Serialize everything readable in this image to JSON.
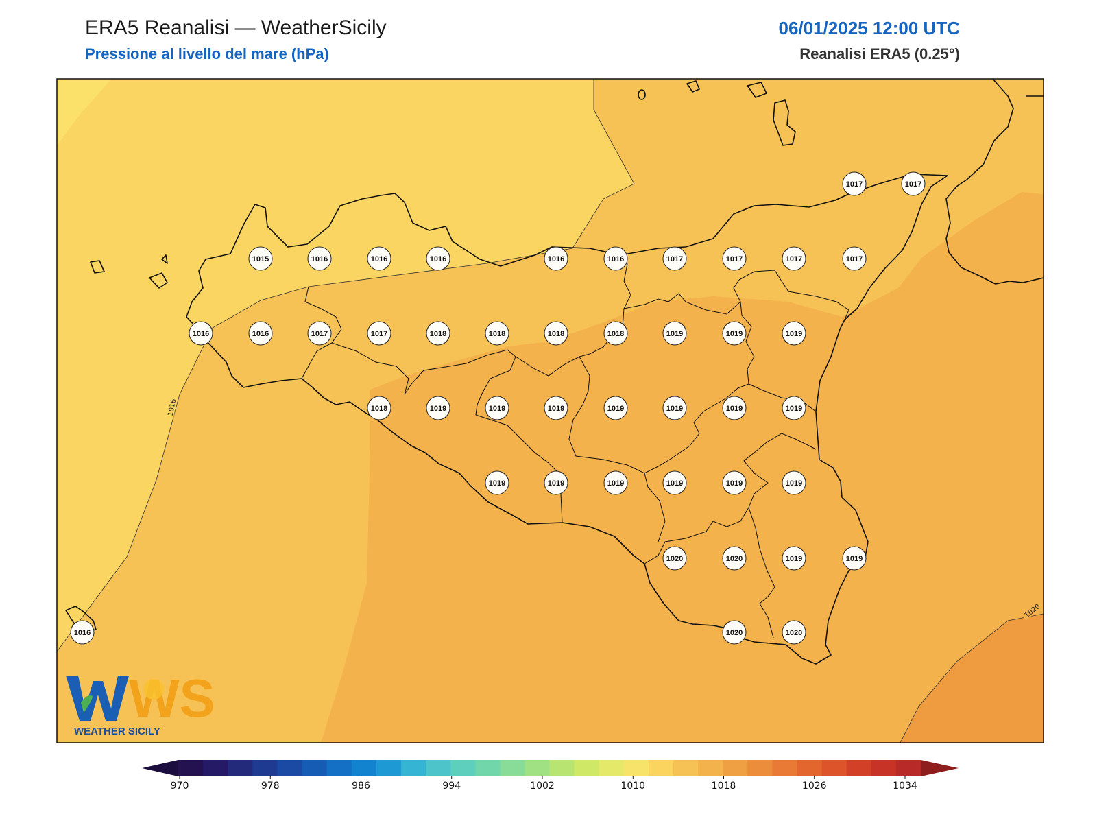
{
  "header": {
    "title": "ERA5 Reanalisi — WeatherSicily",
    "subtitle": "Pressione al livello del mare (hPa)",
    "datetime": "06/01/2025 12:00 UTC",
    "source": "Reanalisi ERA5 (0.25°)"
  },
  "map": {
    "variable": "mean sea level pressure",
    "unit": "hPa",
    "contour_labels": [
      "1016",
      "1020"
    ],
    "field_colors": {
      "1015": "#fbe169",
      "1016": "#fad561",
      "1017": "#f7c255",
      "1018": "#f4b24c",
      "1020": "#ef9c41"
    },
    "stations": [
      {
        "value": "1017"
      },
      {
        "value": "1017"
      },
      {
        "value": "1015"
      },
      {
        "value": "1016"
      },
      {
        "value": "1016"
      },
      {
        "value": "1016"
      },
      {
        "value": "1016"
      },
      {
        "value": "1016"
      },
      {
        "value": "1017"
      },
      {
        "value": "1017"
      },
      {
        "value": "1017"
      },
      {
        "value": "1017"
      },
      {
        "value": "1016"
      },
      {
        "value": "1016"
      },
      {
        "value": "1017"
      },
      {
        "value": "1017"
      },
      {
        "value": "1018"
      },
      {
        "value": "1018"
      },
      {
        "value": "1018"
      },
      {
        "value": "1018"
      },
      {
        "value": "1019"
      },
      {
        "value": "1019"
      },
      {
        "value": "1019"
      },
      {
        "value": "1018"
      },
      {
        "value": "1019"
      },
      {
        "value": "1019"
      },
      {
        "value": "1019"
      },
      {
        "value": "1019"
      },
      {
        "value": "1019"
      },
      {
        "value": "1019"
      },
      {
        "value": "1019"
      },
      {
        "value": "1019"
      },
      {
        "value": "1019"
      },
      {
        "value": "1019"
      },
      {
        "value": "1019"
      },
      {
        "value": "1019"
      },
      {
        "value": "1019"
      },
      {
        "value": "1020"
      },
      {
        "value": "1020"
      },
      {
        "value": "1019"
      },
      {
        "value": "1019"
      },
      {
        "value": "1016"
      },
      {
        "value": "1020"
      },
      {
        "value": "1020"
      }
    ]
  },
  "colorbar": {
    "ticks": [
      "970",
      "978",
      "986",
      "994",
      "1002",
      "1010",
      "1018",
      "1026",
      "1034"
    ],
    "colors": [
      "#23124f",
      "#241a66",
      "#232a7c",
      "#1f3a91",
      "#1a4aa3",
      "#165bb4",
      "#1370c4",
      "#1283cf",
      "#1f99d4",
      "#36b4d3",
      "#4cc4c9",
      "#5ecfbd",
      "#72d6ab",
      "#89dc97",
      "#a0e183",
      "#b8e571",
      "#cfe866",
      "#e4e96a",
      "#f8e36a",
      "#fbd45f",
      "#f7c255",
      "#f4b24c",
      "#efa043",
      "#ec8d3c",
      "#e87a35",
      "#e4662f",
      "#dd542b",
      "#d34028",
      "#c73327",
      "#b72a27"
    ],
    "under_color": "#1b0d3d",
    "over_color": "#8e1e1e"
  },
  "logo": {
    "letters": "WS",
    "name": "WEATHER SICILY"
  }
}
